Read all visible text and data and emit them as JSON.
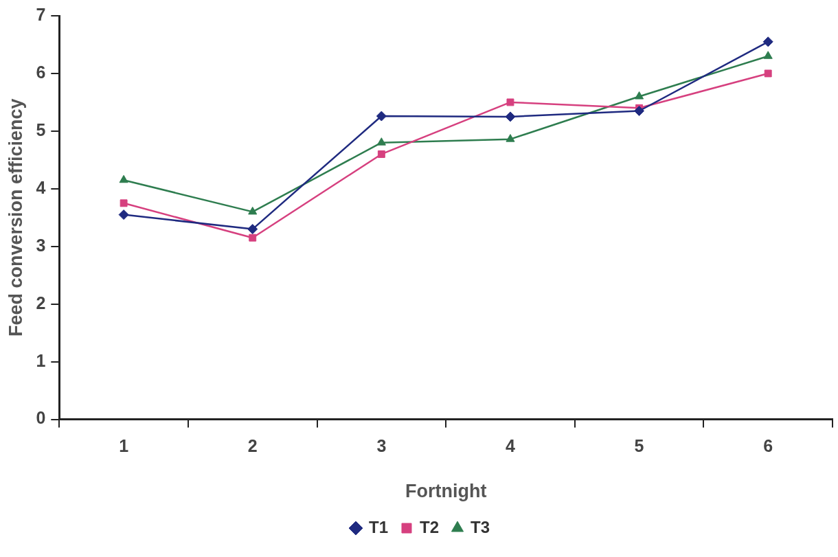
{
  "chart_data": {
    "type": "line",
    "xlabel": "Fortnight",
    "ylabel": "Feed conversion efficiency",
    "categories": [
      "1",
      "2",
      "3",
      "4",
      "5",
      "6"
    ],
    "series": [
      {
        "name": "T1",
        "color": "#1f2a80",
        "marker": "diamond",
        "values": [
          3.55,
          3.3,
          5.26,
          5.25,
          5.35,
          6.55
        ]
      },
      {
        "name": "T2",
        "color": "#d6407f",
        "marker": "square",
        "values": [
          3.75,
          3.15,
          4.6,
          5.5,
          5.4,
          6.0
        ]
      },
      {
        "name": "T3",
        "color": "#2e7d4f",
        "marker": "triangle",
        "values": [
          4.15,
          3.6,
          4.8,
          4.86,
          5.6,
          6.3
        ]
      }
    ],
    "ylim": [
      0,
      7
    ],
    "yticks": [
      0,
      1,
      2,
      3,
      4,
      5,
      6,
      7
    ],
    "grid": false,
    "legend": "bottom",
    "line_style": "solid"
  }
}
